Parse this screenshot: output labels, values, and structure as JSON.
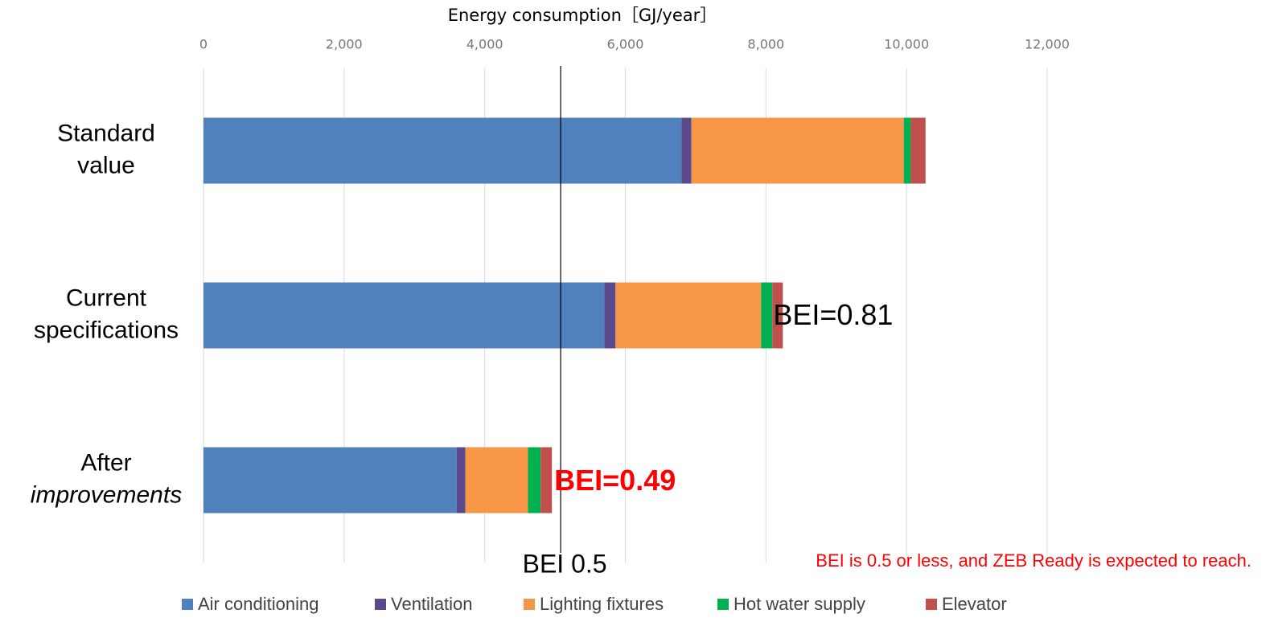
{
  "chart_data": {
    "type": "stacked-bar-horizontal",
    "title": "Energy consumption［GJ/year］",
    "categories": [
      "Standard value",
      "Current specifications",
      "After improvements"
    ],
    "series": [
      {
        "name": "Air conditioning",
        "color": "#4f81bd",
        "values": [
          6800,
          5700,
          3600
        ]
      },
      {
        "name": "Ventilation",
        "color": "#5b4a8b",
        "values": [
          140,
          160,
          125
        ]
      },
      {
        "name": "Lighting fixtures",
        "color": "#f79646",
        "values": [
          3020,
          2070,
          890
        ]
      },
      {
        "name": "Hot water supply",
        "color": "#00b050",
        "values": [
          100,
          160,
          180
        ]
      },
      {
        "name": "Elevator",
        "color": "#c0504d",
        "values": [
          210,
          150,
          160
        ]
      }
    ],
    "xlim": [
      0,
      12000
    ],
    "xticks": [
      0,
      {
        "value": 2000,
        "label": "2,000"
      },
      {
        "value": 4000,
        "label": "4,000"
      },
      {
        "value": 6000,
        "label": "6,000"
      },
      {
        "value": 8000,
        "label": "8,000"
      },
      {
        "value": 10000,
        "label": "10,000"
      },
      {
        "value": 12000,
        "label": "12,000"
      }
    ],
    "grid": true,
    "reference_line": {
      "value": 5080,
      "label": "BEI 0.5"
    },
    "annotations": [
      "BEI=0.81",
      "BEI=0.49",
      "BEI is 0.5 or less, and ZEB Ready is expected to reach."
    ],
    "legend": "bottom"
  }
}
